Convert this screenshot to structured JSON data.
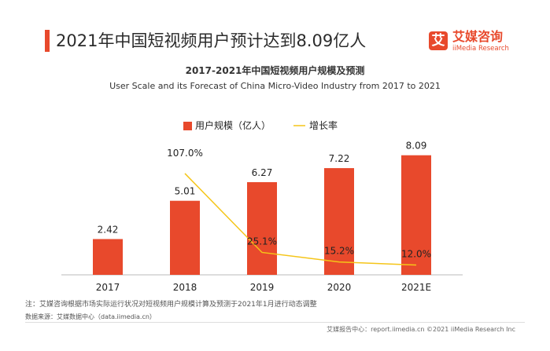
{
  "header": {
    "title": "2021年中国短视频用户预计达到8.09亿人",
    "logo_mark": "艾",
    "logo_cn": "艾媒咨询",
    "logo_en": "iiMedia Research"
  },
  "chart_data": {
    "type": "bar",
    "title": "2017-2021年中国短视频用户规模及预测",
    "subtitle": "User Scale and its Forecast of China Micro-Video Industry from 2017 to 2021",
    "categories": [
      "2017",
      "2018",
      "2019",
      "2020",
      "2021E"
    ],
    "series": [
      {
        "name": "用户规模（亿人）",
        "type": "bar",
        "color": "#e8492c",
        "values": [
          2.42,
          5.01,
          6.27,
          7.22,
          8.09
        ],
        "labels": [
          "2.42",
          "5.01",
          "6.27",
          "7.22",
          "8.09"
        ]
      },
      {
        "name": "增长率",
        "type": "line",
        "color": "#f5c518",
        "values": [
          null,
          107.0,
          25.1,
          15.2,
          12.0
        ],
        "labels": [
          "",
          "107.0%",
          "25.1%",
          "15.2%",
          "12.0%"
        ]
      }
    ],
    "ylim_bar": [
      0,
      9.5
    ],
    "ylim_line": [
      0,
      120
    ],
    "legend": "top-center",
    "grid": false
  },
  "notes": {
    "note": "注：艾媒咨询根据市场实际运行状况对短视频用户规模计算及预测于2021年1月进行动态调整",
    "source": "数据来源：艾媒数据中心（data.iimedia.cn）",
    "footer": "艾媒报告中心：report.iimedia.cn  ©2021  iiMedia Research  Inc"
  }
}
